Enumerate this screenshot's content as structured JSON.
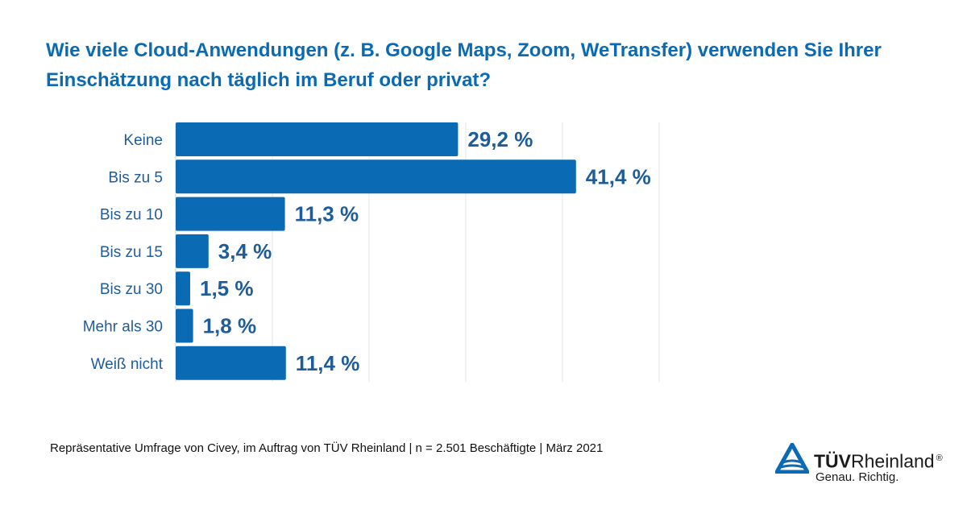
{
  "chart_data": {
    "type": "bar",
    "orientation": "horizontal",
    "title": "Wie viele Cloud-Anwendungen (z. B. Google Maps, Zoom, WeTransfer) verwenden Sie Ihrer Einschätzung nach täglich im Beruf oder privat?",
    "categories": [
      "Keine",
      "Bis zu 5",
      "Bis zu 10",
      "Bis zu 15",
      "Bis zu 30",
      "Mehr als 30",
      "Weiß nicht"
    ],
    "values": [
      29.2,
      41.4,
      11.3,
      3.4,
      1.5,
      1.8,
      11.4
    ],
    "value_labels": [
      "29,2 %",
      "41,4 %",
      "11,3 %",
      "3,4 %",
      "1,5 %",
      "1,8 %",
      "11,4 %"
    ],
    "xlabel": "",
    "ylabel": "",
    "xlim": [
      0,
      50
    ],
    "grid": true,
    "bar_color": "#0a6ab3",
    "label_color": "#1f5c9a",
    "grid_color": "#e6e6e6"
  },
  "footer": {
    "source": "Repräsentative Umfrage von Civey, im Auftrag von TÜV Rheinland | n = 2.501 Beschäftigte | März 2021"
  },
  "logo": {
    "brand_bold": "TÜV",
    "brand_rest": "Rheinland",
    "registered": "®",
    "slogan": "Genau. Richtig."
  }
}
